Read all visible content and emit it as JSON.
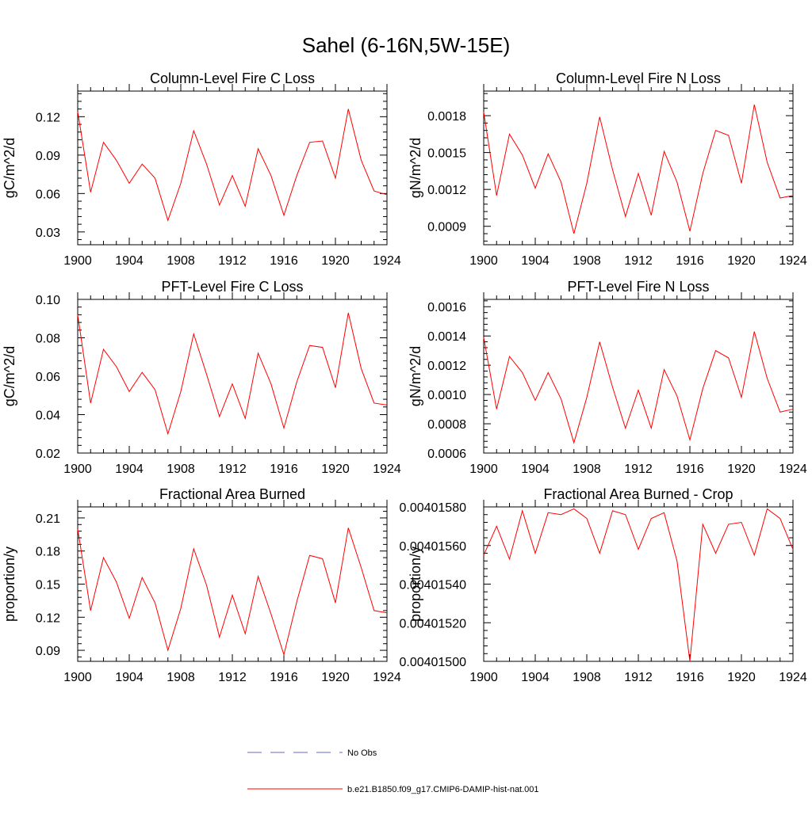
{
  "figure": {
    "title": "Sahel (6-16N,5W-15E)"
  },
  "legend": {
    "entries": [
      {
        "label": "No Obs",
        "color": "#6a6ac8",
        "dash": true
      },
      {
        "label": "b.e21.B1850.f09_g17.CMIP6-DAMIP-hist-nat.001",
        "color": "#ff0000",
        "dash": false
      }
    ]
  },
  "chart_data": [
    {
      "type": "line",
      "title": "Column-Level Fire C Loss",
      "ylabel": "gC/m^2/d",
      "xlim": [
        1900,
        1924
      ],
      "ylim": [
        0.02,
        0.14
      ],
      "xticks": [
        1900,
        1904,
        1908,
        1912,
        1916,
        1920,
        1924
      ],
      "xtick_labels": [
        "1900",
        "1904",
        "1908",
        "1912",
        "1916",
        "1920",
        "1924"
      ],
      "yticks": [
        0.03,
        0.06,
        0.09,
        0.12
      ],
      "ytick_labels": [
        "0.03",
        "0.06",
        "0.09",
        "0.12"
      ],
      "x": [
        1900,
        1901,
        1902,
        1903,
        1904,
        1905,
        1906,
        1907,
        1908,
        1909,
        1910,
        1911,
        1912,
        1913,
        1914,
        1915,
        1916,
        1917,
        1918,
        1919,
        1920,
        1921,
        1922,
        1923,
        1924
      ],
      "series": [
        {
          "color": "#ff0000",
          "values": [
            0.124,
            0.061,
            0.1,
            0.086,
            0.068,
            0.083,
            0.072,
            0.039,
            0.068,
            0.109,
            0.083,
            0.051,
            0.074,
            0.05,
            0.095,
            0.074,
            0.043,
            0.074,
            0.1,
            0.101,
            0.072,
            0.126,
            0.086,
            0.062,
            0.059
          ]
        }
      ]
    },
    {
      "type": "line",
      "title": "Column-Level Fire N Loss",
      "ylabel": "gN/m^2/d",
      "xlim": [
        1900,
        1924
      ],
      "ylim": [
        0.00075,
        0.002
      ],
      "xticks": [
        1900,
        1904,
        1908,
        1912,
        1916,
        1920,
        1924
      ],
      "xtick_labels": [
        "1900",
        "1904",
        "1908",
        "1912",
        "1916",
        "1920",
        "1924"
      ],
      "yticks": [
        0.0009,
        0.0012,
        0.0015,
        0.0018
      ],
      "ytick_labels": [
        "0.0009",
        "0.0012",
        "0.0015",
        "0.0018"
      ],
      "x": [
        1900,
        1901,
        1902,
        1903,
        1904,
        1905,
        1906,
        1907,
        1908,
        1909,
        1910,
        1911,
        1912,
        1913,
        1914,
        1915,
        1916,
        1917,
        1918,
        1919,
        1920,
        1921,
        1922,
        1923,
        1924
      ],
      "series": [
        {
          "color": "#ff0000",
          "values": [
            0.00183,
            0.00115,
            0.00165,
            0.00148,
            0.00121,
            0.00149,
            0.00126,
            0.00084,
            0.00125,
            0.00179,
            0.00136,
            0.00098,
            0.00133,
            0.00099,
            0.00151,
            0.00126,
            0.00086,
            0.00133,
            0.00168,
            0.00164,
            0.00125,
            0.00189,
            0.00142,
            0.00113,
            0.00115
          ]
        }
      ]
    },
    {
      "type": "line",
      "title": "PFT-Level Fire C Loss",
      "ylabel": "gC/m^2/d",
      "xlim": [
        1900,
        1924
      ],
      "ylim": [
        0.02,
        0.1
      ],
      "xticks": [
        1900,
        1904,
        1908,
        1912,
        1916,
        1920,
        1924
      ],
      "xtick_labels": [
        "1900",
        "1904",
        "1908",
        "1912",
        "1916",
        "1920",
        "1924"
      ],
      "yticks": [
        0.02,
        0.04,
        0.06,
        0.08,
        0.1
      ],
      "ytick_labels": [
        "0.02",
        "0.04",
        "0.06",
        "0.08",
        "0.10"
      ],
      "x": [
        1900,
        1901,
        1902,
        1903,
        1904,
        1905,
        1906,
        1907,
        1908,
        1909,
        1910,
        1911,
        1912,
        1913,
        1914,
        1915,
        1916,
        1917,
        1918,
        1919,
        1920,
        1921,
        1922,
        1923,
        1924
      ],
      "series": [
        {
          "color": "#ff0000",
          "values": [
            0.092,
            0.046,
            0.074,
            0.065,
            0.052,
            0.062,
            0.053,
            0.03,
            0.052,
            0.082,
            0.061,
            0.039,
            0.056,
            0.038,
            0.072,
            0.056,
            0.033,
            0.057,
            0.076,
            0.075,
            0.054,
            0.093,
            0.064,
            0.046,
            0.045
          ]
        }
      ]
    },
    {
      "type": "line",
      "title": "PFT-Level Fire N Loss",
      "ylabel": "gN/m^2/d",
      "xlim": [
        1900,
        1924
      ],
      "ylim": [
        0.0006,
        0.00165
      ],
      "xticks": [
        1900,
        1904,
        1908,
        1912,
        1916,
        1920,
        1924
      ],
      "xtick_labels": [
        "1900",
        "1904",
        "1908",
        "1912",
        "1916",
        "1920",
        "1924"
      ],
      "yticks": [
        0.0006,
        0.0008,
        0.001,
        0.0012,
        0.0014,
        0.0016
      ],
      "ytick_labels": [
        "0.0006",
        "0.0008",
        "0.0010",
        "0.0012",
        "0.0014",
        "0.0016"
      ],
      "x": [
        1900,
        1901,
        1902,
        1903,
        1904,
        1905,
        1906,
        1907,
        1908,
        1909,
        1910,
        1911,
        1912,
        1913,
        1914,
        1915,
        1916,
        1917,
        1918,
        1919,
        1920,
        1921,
        1922,
        1923,
        1924
      ],
      "series": [
        {
          "color": "#ff0000",
          "values": [
            0.00139,
            0.0009,
            0.00126,
            0.00115,
            0.00096,
            0.00115,
            0.00097,
            0.00067,
            0.00098,
            0.00136,
            0.00105,
            0.00077,
            0.00103,
            0.00077,
            0.00117,
            0.00099,
            0.00069,
            0.00104,
            0.0013,
            0.00125,
            0.00098,
            0.00143,
            0.00111,
            0.00088,
            0.0009
          ]
        }
      ]
    },
    {
      "type": "line",
      "title": "Fractional Area Burned",
      "ylabel": "proportion/y",
      "xlim": [
        1900,
        1924
      ],
      "ylim": [
        0.08,
        0.22
      ],
      "xticks": [
        1900,
        1904,
        1908,
        1912,
        1916,
        1920,
        1924
      ],
      "xtick_labels": [
        "1900",
        "1904",
        "1908",
        "1912",
        "1916",
        "1920",
        "1924"
      ],
      "yticks": [
        0.09,
        0.12,
        0.15,
        0.18,
        0.21
      ],
      "ytick_labels": [
        "0.09",
        "0.12",
        "0.15",
        "0.18",
        "0.21"
      ],
      "x": [
        1900,
        1901,
        1902,
        1903,
        1904,
        1905,
        1906,
        1907,
        1908,
        1909,
        1910,
        1911,
        1912,
        1913,
        1914,
        1915,
        1916,
        1917,
        1918,
        1919,
        1920,
        1921,
        1922,
        1923,
        1924
      ],
      "series": [
        {
          "color": "#ff0000",
          "values": [
            0.2,
            0.126,
            0.174,
            0.152,
            0.119,
            0.156,
            0.133,
            0.09,
            0.128,
            0.182,
            0.149,
            0.102,
            0.14,
            0.105,
            0.157,
            0.123,
            0.086,
            0.134,
            0.176,
            0.173,
            0.133,
            0.201,
            0.165,
            0.126,
            0.124
          ]
        }
      ]
    },
    {
      "type": "line",
      "title": "Fractional Area Burned - Crop",
      "ylabel": "proportion/y",
      "xlim": [
        1900,
        1924
      ],
      "ylim": [
        0.004015,
        0.0040158
      ],
      "xticks": [
        1900,
        1904,
        1908,
        1912,
        1916,
        1920,
        1924
      ],
      "xtick_labels": [
        "1900",
        "1904",
        "1908",
        "1912",
        "1916",
        "1920",
        "1924"
      ],
      "yticks": [
        0.004015,
        0.0040152,
        0.0040154,
        0.0040156,
        0.0040158
      ],
      "ytick_labels": [
        "0.00401500",
        "0.00401520",
        "0.00401540",
        "0.00401560",
        "0.00401580"
      ],
      "x": [
        1900,
        1901,
        1902,
        1903,
        1904,
        1905,
        1906,
        1907,
        1908,
        1909,
        1910,
        1911,
        1912,
        1913,
        1914,
        1915,
        1916,
        1917,
        1918,
        1919,
        1920,
        1921,
        1922,
        1923,
        1924
      ],
      "series": [
        {
          "color": "#ff0000",
          "values": [
            0.00401555,
            0.0040157,
            0.00401553,
            0.00401578,
            0.00401556,
            0.00401577,
            0.00401576,
            0.00401579,
            0.00401574,
            0.00401556,
            0.00401578,
            0.00401576,
            0.00401558,
            0.00401574,
            0.00401577,
            0.00401552,
            0.004015,
            0.00401571,
            0.00401556,
            0.00401571,
            0.00401572,
            0.00401555,
            0.00401579,
            0.00401574,
            0.00401558
          ]
        }
      ]
    }
  ]
}
